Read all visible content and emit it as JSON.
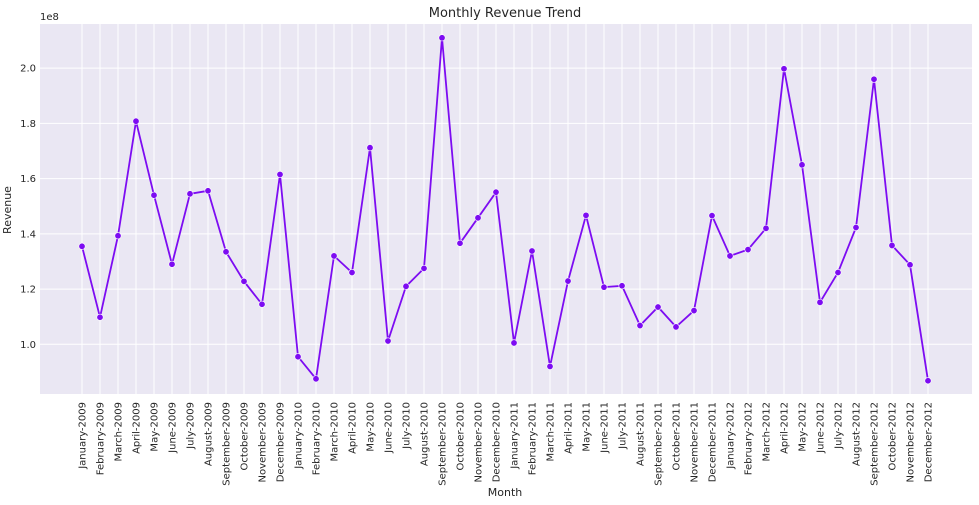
{
  "chart_data": {
    "type": "line",
    "title": "Monthly Revenue Trend",
    "xlabel": "Month",
    "ylabel": "Revenue",
    "y_offset_label": "1e8",
    "y_scale": 100000000,
    "ylim": [
      0.82,
      2.16
    ],
    "yticks": [
      1.0,
      1.2,
      1.4,
      1.6,
      1.8,
      2.0
    ],
    "ytick_labels": [
      "1.0",
      "1.2",
      "1.4",
      "1.6",
      "1.8",
      "2.0"
    ],
    "grid": true,
    "legend": "none",
    "colors": {
      "plot_bg": "#eae7f3",
      "line": "#7d0cf2",
      "marker": "#7d0cf2"
    },
    "categories": [
      "January-2009",
      "February-2009",
      "March-2009",
      "April-2009",
      "May-2009",
      "June-2009",
      "July-2009",
      "August-2009",
      "September-2009",
      "October-2009",
      "November-2009",
      "December-2009",
      "January-2010",
      "February-2010",
      "March-2010",
      "April-2010",
      "May-2010",
      "June-2010",
      "July-2010",
      "August-2010",
      "September-2010",
      "October-2010",
      "November-2010",
      "December-2010",
      "January-2011",
      "February-2011",
      "March-2011",
      "April-2011",
      "May-2011",
      "June-2011",
      "July-2011",
      "August-2011",
      "September-2011",
      "October-2011",
      "November-2011",
      "December-2011",
      "January-2012",
      "February-2012",
      "March-2012",
      "April-2012",
      "May-2012",
      "June-2012",
      "July-2012",
      "August-2012",
      "September-2012",
      "October-2012",
      "November-2012",
      "December-2012"
    ],
    "values": [
      1.355,
      1.098,
      1.393,
      1.808,
      1.54,
      1.29,
      1.545,
      1.556,
      1.335,
      1.228,
      1.145,
      1.615,
      0.955,
      0.875,
      1.32,
      1.26,
      1.712,
      1.012,
      1.21,
      1.275,
      2.11,
      1.366,
      1.458,
      1.551,
      1.005,
      1.338,
      0.92,
      1.229,
      1.467,
      1.207,
      1.212,
      1.068,
      1.135,
      1.063,
      1.122,
      1.466,
      1.32,
      1.343,
      1.42,
      1.998,
      1.65,
      1.152,
      1.26,
      1.423,
      1.96,
      1.358,
      1.288,
      0.868
    ]
  }
}
